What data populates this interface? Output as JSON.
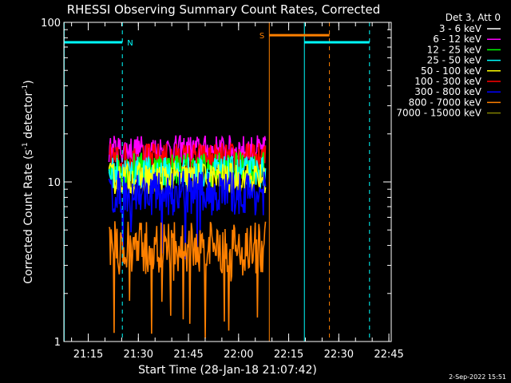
{
  "chart_data": {
    "type": "line",
    "title": "RHESSI Observing Summary Count Rates, Corrected",
    "xlabel": "Start Time (28-Jan-18 21:07:42)",
    "ylabel_main": "Corrected Count Rate (s",
    "ylabel_sup1": "-1",
    "ylabel_mid": " detector",
    "ylabel_sup2": "-1",
    "ylabel_end": ")",
    "y_scale": "log",
    "ylim": [
      1,
      100
    ],
    "xlim_minutes": [
      0,
      98
    ],
    "x_ticks": [
      {
        "label": "21:15",
        "minute": 7.3
      },
      {
        "label": "21:30",
        "minute": 22.3
      },
      {
        "label": "21:45",
        "minute": 37.3
      },
      {
        "label": "22:00",
        "minute": 52.3
      },
      {
        "label": "22:15",
        "minute": 67.3
      },
      {
        "label": "22:30",
        "minute": 82.3
      },
      {
        "label": "22:45",
        "minute": 97.3
      }
    ],
    "y_ticks": [
      {
        "label": "1",
        "value": 1
      },
      {
        "label": "10",
        "value": 10
      },
      {
        "label": "100",
        "value": 100
      }
    ],
    "legend": {
      "placement": "right",
      "header": "Det 3, Att 0",
      "entries": [
        {
          "name": "3 - 6 keV",
          "color": "#ffffff"
        },
        {
          "name": "6 - 12 keV",
          "color": "#ff00ff"
        },
        {
          "name": "12 - 25 keV",
          "color": "#00ff00"
        },
        {
          "name": "25 - 50 keV",
          "color": "#00ffff"
        },
        {
          "name": "50 - 100 keV",
          "color": "#ffff00"
        },
        {
          "name": "100 - 300 keV",
          "color": "#ff0000"
        },
        {
          "name": "300 - 800 keV",
          "color": "#0000ff"
        },
        {
          "name": "800 - 7000 keV",
          "color": "#ff8000"
        },
        {
          "name": "7000 - 15000 keV",
          "color": "#808000"
        }
      ]
    },
    "plotted_series": [
      {
        "color": "#000000",
        "level": 18,
        "noise": 0.22,
        "start": 13.5,
        "end": 60.5
      },
      {
        "color": "#ff00ff",
        "level": 16,
        "noise": 0.18,
        "start": 13.5,
        "end": 60.5
      },
      {
        "color": "#ff0000",
        "level": 14,
        "noise": 0.2,
        "start": 13.5,
        "end": 60.5
      },
      {
        "color": "#00ff00",
        "level": 12,
        "noise": 0.22,
        "start": 13.5,
        "end": 60.5
      },
      {
        "color": "#00ffff",
        "level": 11.5,
        "noise": 0.2,
        "start": 13.5,
        "end": 60.5
      },
      {
        "color": "#ffff00",
        "level": 10.5,
        "noise": 0.2,
        "start": 13.5,
        "end": 60.5
      },
      {
        "color": "#0000ff",
        "level": 8.5,
        "noise": 0.28,
        "start": 13.5,
        "end": 60.5
      },
      {
        "color": "#ff8000",
        "level": 3.8,
        "noise": 0.35,
        "start": 13.5,
        "end": 60.5
      }
    ],
    "intervals": [
      {
        "label": "N",
        "color": "#00ffff",
        "level": 75,
        "start": 0,
        "end": 17.5,
        "boundary": 17.5,
        "boundary_style": "dashed"
      },
      {
        "label": "S",
        "color": "#ff8000",
        "level": 83,
        "start": 61.5,
        "end": 79.5,
        "boundary": 79.5,
        "boundary_style": "dashed"
      },
      {
        "label": "",
        "color": "#00ffff",
        "level": 75,
        "start": 72.0,
        "end": 91.5,
        "boundary": 91.5,
        "boundary_style": "dashed"
      }
    ],
    "boundaries": [
      {
        "minute": 0.1,
        "color": "#00ffff"
      },
      {
        "minute": 61.5,
        "color": "#ff8000"
      },
      {
        "minute": 72.0,
        "color": "#00ffff"
      }
    ],
    "annotation": "2-Sep-2022 15:51"
  }
}
